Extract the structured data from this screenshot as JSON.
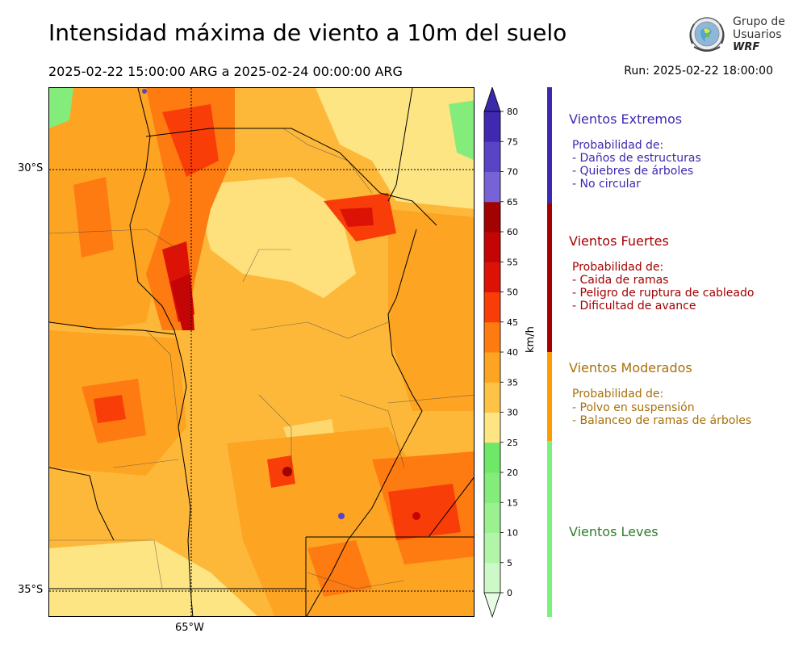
{
  "header": {
    "title": "Intensidad máxima de viento a 10m del suelo",
    "period": "2025-02-22 15:00:00 ARG  a  2025-02-24 00:00:00 ARG",
    "run": "Run: 2025-02-22 18:00:00"
  },
  "logo": {
    "line1": "Grupo de",
    "line2": "Usuarios",
    "line3": "WRF"
  },
  "map": {
    "lat_labels": [
      "30°S",
      "35°S"
    ],
    "lon_labels": [
      "65°W"
    ]
  },
  "colorbar": {
    "unit": "km/h",
    "ticks": [
      "0",
      "5",
      "10",
      "15",
      "20",
      "25",
      "30",
      "35",
      "40",
      "45",
      "50",
      "55",
      "60",
      "65",
      "70",
      "75",
      "80"
    ],
    "colors": [
      "#e6fde4",
      "#cdf9c8",
      "#b2f5a8",
      "#9bf08f",
      "#84ec7a",
      "#6fe868",
      "#fee584",
      "#fdc347",
      "#fda423",
      "#fd7b10",
      "#f93d08",
      "#dd1207",
      "#c30505",
      "#a20202",
      "#7763d6",
      "#5a44c6",
      "#4029b0",
      "#3a29a9"
    ]
  },
  "legend": {
    "categories": [
      {
        "title": "Vientos Extremos",
        "color": "#3f28b0",
        "lines": [
          "Probabilidad de:",
          "- Daños de estructuras",
          "- Quiebres de árboles",
          "- No circular"
        ]
      },
      {
        "title": "Vientos Fuertes",
        "color": "#a50000",
        "lines": [
          "Probabilidad de:",
          "- Caida de ramas",
          "- Peligro de ruptura de cableado",
          "- Dificultad de avance"
        ]
      },
      {
        "title": "Vientos Moderados",
        "color": "#a8700a",
        "bar_color": "#ff9b00",
        "lines": [
          "Probabilidad de:",
          "- Polvo en suspensión",
          "- Balanceo de ramas de árboles"
        ]
      },
      {
        "title": "Vientos Leves",
        "color": "#2e7d2e",
        "bar_color": "#7cf07c",
        "lines": []
      }
    ]
  }
}
